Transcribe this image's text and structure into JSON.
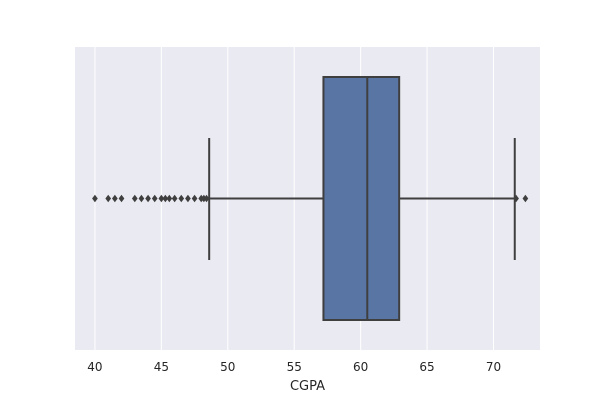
{
  "chart_data": {
    "type": "box",
    "orientation": "horizontal",
    "xlabel": "CGPA",
    "xlim": [
      38.5,
      73.5
    ],
    "x_ticks": [
      40,
      45,
      50,
      55,
      60,
      65,
      70
    ],
    "x_tick_labels": [
      "40",
      "45",
      "50",
      "55",
      "60",
      "65",
      "70"
    ],
    "grid": true,
    "style": "seaborn-darkgrid",
    "box": {
      "whisker_low": 48.6,
      "q1": 57.2,
      "median": 60.5,
      "q3": 62.9,
      "whisker_high": 71.6
    },
    "outliers": [
      40.0,
      41.0,
      41.5,
      42.0,
      43.0,
      43.5,
      44.0,
      44.5,
      45.0,
      45.3,
      45.6,
      46.0,
      46.5,
      47.0,
      47.5,
      48.0,
      48.2,
      48.4,
      71.7,
      72.4
    ],
    "colors": {
      "box_fill": "#5875a4",
      "line": "#3f3f3f",
      "background": "#eaeaf2",
      "grid": "#ffffff"
    }
  }
}
